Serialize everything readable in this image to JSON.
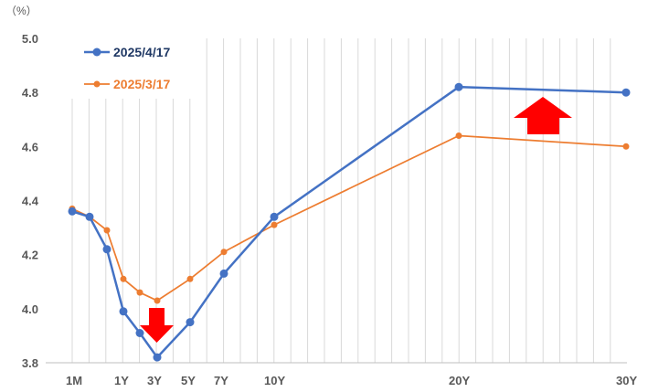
{
  "chart_data": {
    "type": "line",
    "unit_label": "（%）",
    "ylim": [
      3.8,
      5.0
    ],
    "y_ticks": [
      "5.0",
      "4.8",
      "4.6",
      "4.4",
      "4.2",
      "4.0",
      "3.8"
    ],
    "x_tick_labels": [
      "1M",
      "1Y",
      "3Y",
      "5Y",
      "7Y",
      "10Y",
      "20Y",
      "30Y"
    ],
    "grid": "vertical",
    "legend_position": "top-left",
    "series": [
      {
        "name": "2025/4/17",
        "color": "#4472C4",
        "points": [
          {
            "x": "1M",
            "y": 4.36
          },
          {
            "x": "3M",
            "y": 4.34
          },
          {
            "x": "6M",
            "y": 4.22
          },
          {
            "x": "1Y",
            "y": 3.99
          },
          {
            "x": "2Y",
            "y": 3.91
          },
          {
            "x": "3Y",
            "y": 3.82
          },
          {
            "x": "5Y",
            "y": 3.95
          },
          {
            "x": "7Y",
            "y": 4.13
          },
          {
            "x": "10Y",
            "y": 4.34
          },
          {
            "x": "20Y",
            "y": 4.82
          },
          {
            "x": "30Y",
            "y": 4.8
          }
        ]
      },
      {
        "name": "2025/3/17",
        "color": "#ED7D31",
        "points": [
          {
            "x": "1M",
            "y": 4.37
          },
          {
            "x": "3M",
            "y": 4.34
          },
          {
            "x": "6M",
            "y": 4.29
          },
          {
            "x": "1Y",
            "y": 4.11
          },
          {
            "x": "2Y",
            "y": 4.06
          },
          {
            "x": "3Y",
            "y": 4.03
          },
          {
            "x": "5Y",
            "y": 4.11
          },
          {
            "x": "7Y",
            "y": 4.21
          },
          {
            "x": "10Y",
            "y": 4.31
          },
          {
            "x": "20Y",
            "y": 4.64
          },
          {
            "x": "30Y",
            "y": 4.6
          }
        ]
      }
    ],
    "annotations": [
      {
        "type": "arrow",
        "direction": "down",
        "color": "#FF0000",
        "near": "3Y"
      },
      {
        "type": "arrow",
        "direction": "up",
        "color": "#FF0000",
        "near": "20Y-30Y"
      }
    ]
  }
}
